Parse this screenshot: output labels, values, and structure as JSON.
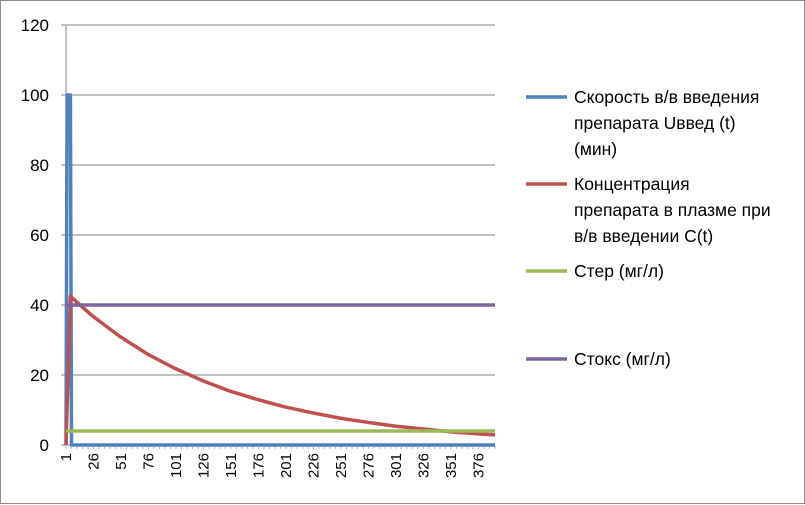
{
  "chart_data": {
    "type": "line",
    "title": "",
    "xlabel": "",
    "ylabel": "",
    "ylim": [
      0,
      120
    ],
    "yticks": [
      0,
      20,
      40,
      60,
      80,
      100,
      120
    ],
    "xlim": [
      1,
      391
    ],
    "xtick_labels": [
      "1",
      "26",
      "51",
      "76",
      "101",
      "126",
      "151",
      "176",
      "201",
      "226",
      "251",
      "276",
      "301",
      "326",
      "351",
      "376"
    ],
    "grid": "horizontal",
    "legend_position": "right",
    "series": [
      {
        "name": "Скорость в/в введения препарата Uввед (t) (мин)",
        "color": "#4f81bd",
        "x": [
          1,
          2,
          4,
          5,
          6,
          391
        ],
        "y": [
          0,
          100,
          100,
          100,
          0,
          0
        ]
      },
      {
        "name": "Концентрация препарата в плазме при в/в введении C(t)",
        "color": "#c0504d",
        "x": [
          1,
          5,
          25,
          50,
          75,
          100,
          125,
          150,
          175,
          200,
          225,
          250,
          275,
          300,
          325,
          350,
          375,
          391
        ],
        "y": [
          0,
          42.5,
          36.9,
          31.0,
          26.0,
          21.9,
          18.4,
          15.4,
          13.0,
          10.9,
          9.2,
          7.7,
          6.5,
          5.4,
          4.6,
          3.8,
          3.2,
          2.9
        ]
      },
      {
        "name": "Стер (мг/л)",
        "color": "#9bbb59",
        "x": [
          1,
          391
        ],
        "y": [
          4,
          4
        ]
      },
      {
        "name": "Стокс (мг/л)",
        "color": "#8064a2",
        "x": [
          1,
          391
        ],
        "y": [
          40,
          40
        ]
      }
    ]
  },
  "legend": {
    "items": [
      {
        "lines": [
          "Скорость в/в введения",
          "препарата Uввед (t)",
          "(мин)"
        ],
        "color": "#4f81bd"
      },
      {
        "lines": [
          "Концентрация",
          "препарата в плазме при",
          "в/в введении C(t)"
        ],
        "color": "#c0504d"
      },
      {
        "lines": [
          "Стер (мг/л)"
        ],
        "color": "#9bbb59"
      },
      {
        "lines": [
          "Стокс (мг/л)"
        ],
        "color": "#8064a2"
      }
    ]
  }
}
